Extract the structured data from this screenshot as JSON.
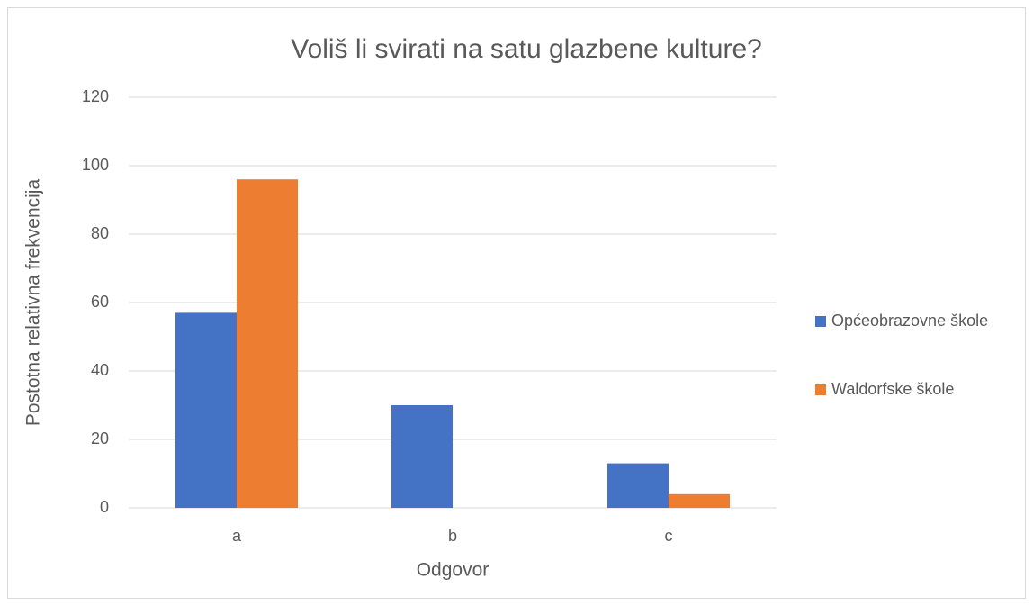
{
  "chart_data": {
    "type": "bar",
    "title": "Voliš li svirati na satu glazbene kulture?",
    "x_label": "Odgovor",
    "y_label": "Postotna relativna frekvencija",
    "categories": [
      "a",
      "b",
      "c"
    ],
    "series": [
      {
        "name": "Općeobrazovne škole",
        "color": "#4472c4",
        "values": [
          57,
          30,
          13
        ]
      },
      {
        "name": "Waldorfske škole",
        "color": "#ed7d31",
        "values": [
          96,
          0,
          4
        ]
      }
    ],
    "ylim": [
      0,
      120
    ],
    "yticks": [
      0,
      20,
      40,
      60,
      80,
      100,
      120
    ],
    "grid": true,
    "legend": "right"
  }
}
